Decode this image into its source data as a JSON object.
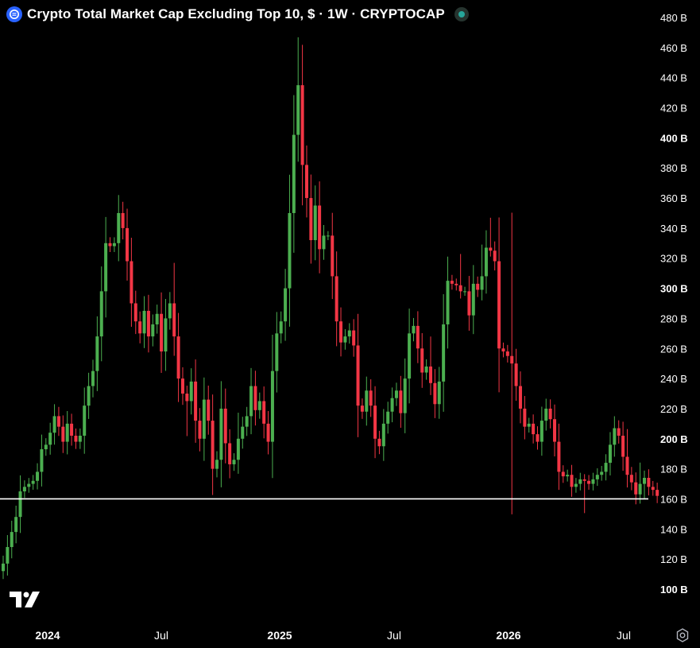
{
  "header": {
    "title": "Crypto Total Market Cap Excluding Top 10, $ · 1W · CRYPTOCAP",
    "logo_icon": "coin-logo-icon",
    "status_icon": "market-status-dot-icon"
  },
  "colors": {
    "background": "#000000",
    "up": "#4caf50",
    "down": "#f23645",
    "support_line": "#ffffff",
    "text": "#ffffff"
  },
  "chart_data": {
    "type": "candlestick",
    "title": "Crypto Total Market Cap Excluding Top 10, $ · 1W · CRYPTOCAP",
    "interval": "1W",
    "unit": "B",
    "ylim": [
      100,
      480
    ],
    "y_ticks": [
      "480 B",
      "460 B",
      "440 B",
      "420 B",
      "400 B",
      "380 B",
      "360 B",
      "340 B",
      "320 B",
      "300 B",
      "280 B",
      "260 B",
      "240 B",
      "220 B",
      "200 B",
      "180 B",
      "160 B",
      "140 B",
      "120 B",
      "100 B"
    ],
    "y_ticks_bold": [
      "400 B",
      "300 B",
      "200 B",
      "100 B"
    ],
    "x_ticks": [
      "2024",
      "Jul",
      "2025",
      "Jul",
      "2026",
      "Jul"
    ],
    "x_ticks_bold": [
      "2024",
      "2025",
      "2026"
    ],
    "horizontal_line": 160,
    "closes": [
      117,
      128,
      138,
      148,
      165,
      168,
      170,
      172,
      178,
      193,
      196,
      204,
      215,
      208,
      198,
      210,
      202,
      198,
      202,
      222,
      235,
      245,
      268,
      298,
      330,
      328,
      330,
      350,
      340,
      318,
      290,
      278,
      270,
      285,
      268,
      276,
      283,
      258,
      280,
      290,
      268,
      240,
      230,
      225,
      238,
      212,
      200,
      226,
      212,
      180,
      186,
      220,
      197,
      183,
      186,
      200,
      208,
      215,
      235,
      219,
      225,
      210,
      198,
      245,
      270,
      278,
      300,
      350,
      402,
      435,
      382,
      360,
      332,
      355,
      326,
      335,
      335,
      308,
      278,
      264,
      268,
      272,
      262,
      222,
      218,
      232,
      222,
      200,
      195,
      210,
      218,
      227,
      232,
      217,
      240,
      270,
      275,
      260,
      244,
      248,
      237,
      223,
      238,
      276,
      305,
      303,
      302,
      298,
      298,
      282,
      303,
      299,
      308,
      327,
      325,
      318,
      260,
      258,
      255,
      250,
      235,
      220,
      208,
      210,
      203,
      198,
      212,
      220,
      213,
      198,
      178,
      175,
      176,
      168,
      170,
      173,
      172,
      170,
      173,
      176,
      178,
      184,
      196,
      207,
      202,
      188,
      176,
      171,
      163,
      170,
      174,
      168,
      166,
      162
    ]
  }
}
